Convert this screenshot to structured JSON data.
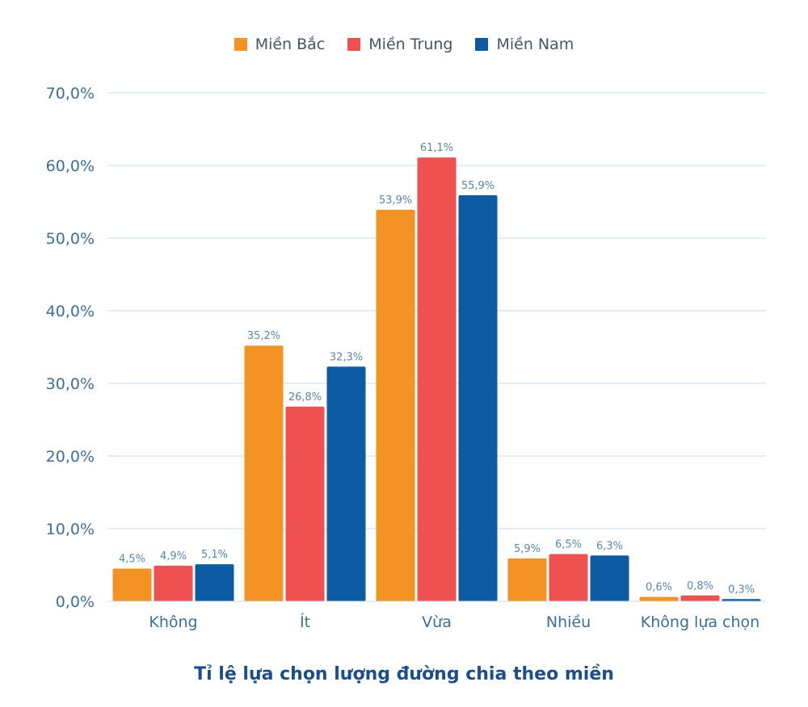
{
  "chart_data": {
    "type": "bar",
    "title": "Tỉ lệ lựa chọn lượng đường chia theo miền",
    "xlabel": "",
    "ylabel": "",
    "categories": [
      "Không",
      "Ít",
      "Vừa",
      "Nhiều",
      "Không lựa chọn"
    ],
    "ylim": [
      0,
      70
    ],
    "yticks": [
      0,
      10,
      20,
      30,
      40,
      50,
      60,
      70
    ],
    "ytick_labels": [
      "0,0%",
      "10,0%",
      "20,0%",
      "30,0%",
      "40,0%",
      "50,0%",
      "60,0%",
      "70,0%"
    ],
    "grid": true,
    "legend_position": "top-center",
    "series": [
      {
        "name": "Miền Bắc",
        "color": "#f39323",
        "values": [
          4.5,
          35.2,
          53.9,
          5.9,
          0.6
        ],
        "labels": [
          "4,5%",
          "35,2%",
          "53,9%",
          "5,9%",
          "0,6%"
        ]
      },
      {
        "name": "Miền Trung",
        "color": "#ef5050",
        "values": [
          4.9,
          26.8,
          61.1,
          6.5,
          0.8
        ],
        "labels": [
          "4,9%",
          "26,8%",
          "61,1%",
          "6,5%",
          "0,8%"
        ]
      },
      {
        "name": "Miền Nam",
        "color": "#0d5ba3",
        "values": [
          5.1,
          32.3,
          55.9,
          6.3,
          0.3
        ],
        "labels": [
          "5,1%",
          "32,3%",
          "55,9%",
          "6,3%",
          "0,3%"
        ]
      }
    ]
  }
}
